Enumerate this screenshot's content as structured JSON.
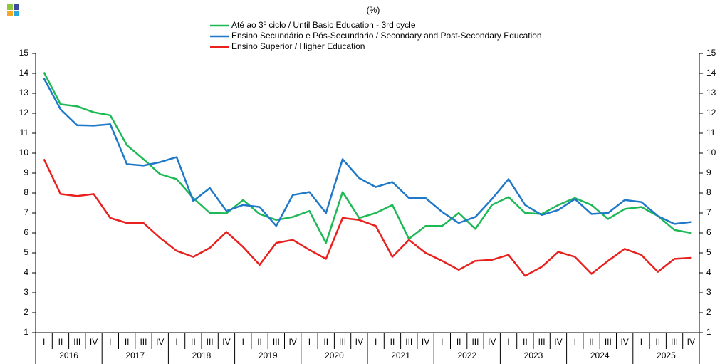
{
  "chart_data": {
    "type": "line",
    "title": "(%)",
    "categories": [
      "I",
      "II",
      "III",
      "IV",
      "I",
      "II",
      "III",
      "IV",
      "I",
      "II",
      "III",
      "IV",
      "I",
      "II",
      "III",
      "IV",
      "I",
      "II",
      "III",
      "IV",
      "I",
      "II",
      "III",
      "IV",
      "I",
      "II",
      "III",
      "IV",
      "I",
      "II",
      "III",
      "IV",
      "I",
      "II",
      "III",
      "IV",
      "I",
      "II",
      "III",
      "IV"
    ],
    "groups": [
      "2016",
      "2017",
      "2018",
      "2019",
      "2020",
      "2021",
      "2022",
      "2023",
      "2024",
      "2025"
    ],
    "series": [
      {
        "name": "Até ao 3º ciclo / Until Basic Education - 3rd cycle",
        "color": "#1db954",
        "values": [
          14.05,
          12.45,
          12.35,
          12.05,
          11.9,
          10.4,
          9.7,
          8.95,
          8.7,
          7.75,
          7.0,
          6.98,
          7.65,
          6.95,
          6.65,
          6.8,
          7.1,
          5.5,
          8.05,
          6.75,
          7.0,
          7.4,
          5.7,
          6.35,
          6.35,
          7.0,
          6.2,
          7.4,
          7.8,
          7.0,
          6.95,
          7.4,
          7.75,
          7.4,
          6.7,
          7.2,
          7.3,
          6.85,
          6.15,
          6.0
        ]
      },
      {
        "name": "Ensino Secundário e Pós-Secundário / Secondary and Post-Secondary Education",
        "color": "#1f78c8",
        "values": [
          13.75,
          12.2,
          11.4,
          11.38,
          11.45,
          9.45,
          9.38,
          9.55,
          9.8,
          7.6,
          8.25,
          7.1,
          7.4,
          7.3,
          6.35,
          7.9,
          8.05,
          7.0,
          9.7,
          8.75,
          8.3,
          8.55,
          7.75,
          7.75,
          7.05,
          6.5,
          6.8,
          7.7,
          8.7,
          7.4,
          6.9,
          7.15,
          7.7,
          6.95,
          7.0,
          7.65,
          7.55,
          6.85,
          6.45,
          6.55
        ]
      },
      {
        "name": "Ensino Superior / Higher Education",
        "color": "#e8201e",
        "values": [
          9.7,
          7.95,
          7.85,
          7.95,
          6.75,
          6.5,
          6.5,
          5.75,
          5.1,
          4.8,
          5.25,
          6.05,
          5.3,
          4.4,
          5.5,
          5.65,
          5.15,
          4.7,
          6.75,
          6.65,
          6.35,
          4.8,
          5.65,
          5.0,
          4.6,
          4.15,
          4.6,
          4.65,
          4.9,
          3.85,
          4.3,
          5.05,
          4.8,
          3.95,
          4.6,
          5.2,
          4.9,
          4.05,
          4.7,
          4.75
        ]
      }
    ],
    "ylim": [
      1,
      15
    ],
    "yticks": [
      1,
      2,
      3,
      4,
      5,
      6,
      7,
      8,
      9,
      10,
      11,
      12,
      13,
      14,
      15
    ]
  }
}
